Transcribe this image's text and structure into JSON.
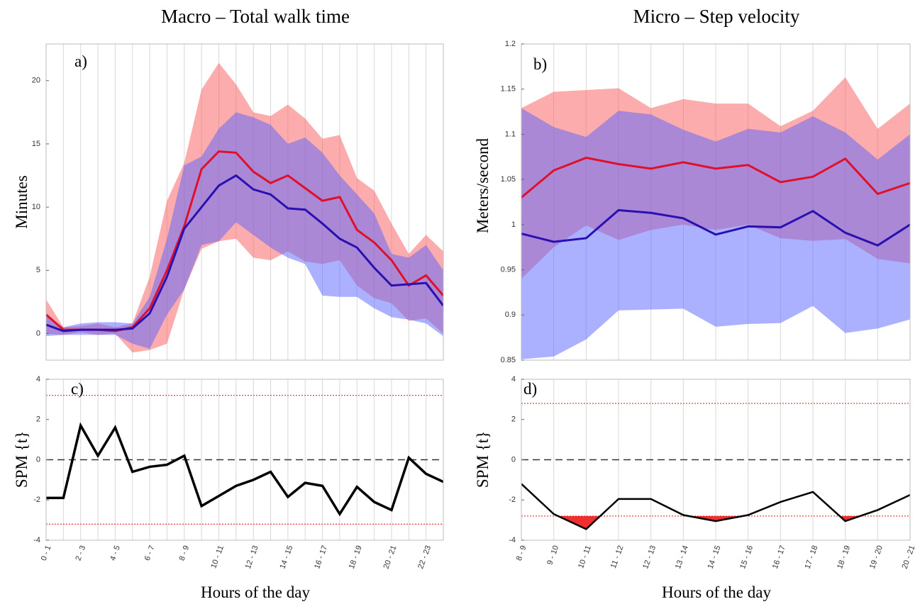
{
  "chart_data": [
    {
      "type": "band-line",
      "title": "Macro – Total walk time",
      "panel_label": "a)",
      "y_label": "Minutes",
      "categories": [
        "0 - 1",
        null,
        "2 - 3",
        null,
        "4 - 5",
        null,
        "6 - 7",
        null,
        "8 - 9",
        null,
        "10 - 11",
        null,
        "12 - 13",
        null,
        "14 - 15",
        null,
        "16 - 17",
        null,
        "18 - 19",
        null,
        "20 - 21",
        null,
        "22 - 23",
        null
      ],
      "ylim": [
        -2.1,
        22.9
      ],
      "yticks": [
        0,
        5,
        10,
        15,
        20
      ],
      "grid": true,
      "bands": [
        {
          "color": "rgba(250,90,90,0.5)",
          "upper": [
            2.7,
            0.5,
            0.6,
            0.8,
            0.5,
            0.8,
            4.5,
            10.5,
            13.5,
            19.3,
            21.4,
            19.7,
            17.5,
            17.2,
            18.1,
            17.0,
            15.4,
            15.7,
            12.3,
            11.3,
            8.7,
            6.3,
            7.8,
            6.5
          ],
          "lower": [
            0.0,
            -0.1,
            0.1,
            -0.1,
            0,
            -1.5,
            -1.3,
            -0.8,
            3.5,
            6.7,
            7.3,
            7.5,
            6.0,
            5.8,
            6.5,
            5.7,
            5.5,
            5.8,
            3.8,
            2.8,
            2.4,
            1.0,
            1.2,
            0.0
          ]
        },
        {
          "color": "rgba(90,100,255,0.5)",
          "upper": [
            1.4,
            0.5,
            0.8,
            0.9,
            0.9,
            0.8,
            2.9,
            7.5,
            13.3,
            14.0,
            16.2,
            17.5,
            17.1,
            16.5,
            15.0,
            15.5,
            14.3,
            12.5,
            11.0,
            9.5,
            6.3,
            6.0,
            7.0,
            5.0
          ],
          "lower": [
            -0.2,
            -0.1,
            -0.1,
            -0.1,
            -0.1,
            -0.8,
            -1.2,
            1.5,
            3.5,
            7.0,
            7.3,
            8.8,
            7.8,
            6.8,
            6.0,
            5.5,
            3.0,
            2.9,
            2.9,
            2.0,
            1.3,
            1.1,
            0.8,
            -0.2
          ]
        }
      ],
      "lines": [
        {
          "color": "#e0102a",
          "values": [
            1.5,
            0.3,
            0.3,
            0.3,
            0.2,
            0.5,
            2.0,
            5.0,
            8.5,
            13.0,
            14.4,
            14.3,
            12.8,
            11.9,
            12.5,
            11.5,
            10.5,
            10.8,
            8.2,
            7.2,
            5.8,
            3.8,
            4.6,
            3.0
          ]
        },
        {
          "color": "#2a10b0",
          "values": [
            0.7,
            0.2,
            0.3,
            0.3,
            0.3,
            0.4,
            1.6,
            4.5,
            8.3,
            10.0,
            11.7,
            12.5,
            11.4,
            11.0,
            9.9,
            9.8,
            8.7,
            7.5,
            6.8,
            5.2,
            3.8,
            3.9,
            4.0,
            2.2
          ]
        }
      ]
    },
    {
      "type": "band-line",
      "title": "Micro – Step velocity",
      "panel_label": "b)",
      "y_label": "Meters/second",
      "categories": [
        "8 - 9",
        "9 - 10",
        "10 - 11",
        "11 - 12",
        "12 - 13",
        "13 - 14",
        "14 - 15",
        "15 - 16",
        "16 - 17",
        "17 - 18",
        "18 - 19",
        "19 - 20",
        "20 - 21"
      ],
      "ylim": [
        0.85,
        1.2
      ],
      "yticks": [
        0.85,
        0.9,
        0.95,
        1,
        1.05,
        1.1,
        1.15,
        1.2
      ],
      "grid": true,
      "bands": [
        {
          "color": "rgba(250,90,90,0.5)",
          "upper": [
            1.129,
            1.147,
            1.149,
            1.151,
            1.129,
            1.139,
            1.134,
            1.134,
            1.109,
            1.126,
            1.163,
            1.106,
            1.134
          ],
          "lower": [
            0.94,
            0.975,
            0.999,
            0.983,
            0.994,
            1.0,
            0.994,
            1.0,
            0.985,
            0.982,
            0.984,
            0.962,
            0.957
          ]
        },
        {
          "color": "rgba(90,100,255,0.5)",
          "upper": [
            1.129,
            1.108,
            1.097,
            1.126,
            1.122,
            1.105,
            1.092,
            1.106,
            1.102,
            1.12,
            1.102,
            1.072,
            1.1
          ],
          "lower": [
            0.851,
            0.854,
            0.873,
            0.905,
            0.906,
            0.907,
            0.887,
            0.89,
            0.891,
            0.91,
            0.88,
            0.885,
            0.895
          ]
        }
      ],
      "lines": [
        {
          "color": "#e0102a",
          "values": [
            1.03,
            1.06,
            1.074,
            1.067,
            1.062,
            1.069,
            1.062,
            1.066,
            1.047,
            1.053,
            1.073,
            1.034,
            1.046
          ]
        },
        {
          "color": "#2a10b0",
          "values": [
            0.99,
            0.981,
            0.985,
            1.016,
            1.013,
            1.007,
            0.989,
            0.998,
            0.997,
            1.015,
            0.991,
            0.977,
            1.0
          ]
        }
      ]
    },
    {
      "type": "spm",
      "panel_label": "c)",
      "y_label": "SPM {t}",
      "x_label": "Hours of the day",
      "categories": [
        "0 - 1",
        null,
        "2 - 3",
        null,
        "4 - 5",
        null,
        "6 - 7",
        null,
        "8 - 9",
        null,
        "10 - 11",
        null,
        "12 - 13",
        null,
        "14 - 15",
        null,
        "16 - 17",
        null,
        "18 - 19",
        null,
        "20 - 21",
        null,
        "22 - 23",
        null
      ],
      "ylim": [
        -4,
        4
      ],
      "yticks": [
        -4,
        -2,
        0,
        2,
        4
      ],
      "grid": true,
      "thresholds": [
        -3.2,
        3.2
      ],
      "reference_line": 0,
      "color": "#000000",
      "fill_color": "#f03030",
      "values": [
        -1.9,
        -1.9,
        1.7,
        0.2,
        1.6,
        -0.6,
        -0.35,
        -0.25,
        0.2,
        -2.3,
        -1.8,
        -1.3,
        -1.0,
        -0.6,
        -1.85,
        -1.15,
        -1.3,
        -2.7,
        -1.35,
        -2.1,
        -2.5,
        0.1,
        -0.7,
        -1.1
      ]
    },
    {
      "type": "spm",
      "panel_label": "d)",
      "y_label": "SPM {t}",
      "x_label": "Hours of the day",
      "categories": [
        "8 - 9",
        "9 - 10",
        "10 - 11",
        "11 - 12",
        "12 - 13",
        "13 - 14",
        "14 - 15",
        "15 - 16",
        "16 - 17",
        "17 - 18",
        "18 - 19",
        "19 - 20",
        "20 - 21"
      ],
      "ylim": [
        -4,
        4
      ],
      "yticks": [
        -4,
        -2,
        0,
        2,
        4
      ],
      "grid": true,
      "thresholds": [
        -2.8,
        2.8
      ],
      "reference_line": 0,
      "color": "#000000",
      "fill_color": "#f03030",
      "values": [
        -1.2,
        -2.7,
        -3.45,
        -1.95,
        -1.95,
        -2.75,
        -3.05,
        -2.75,
        -2.1,
        -1.6,
        -3.05,
        -2.5,
        -1.75
      ]
    }
  ]
}
